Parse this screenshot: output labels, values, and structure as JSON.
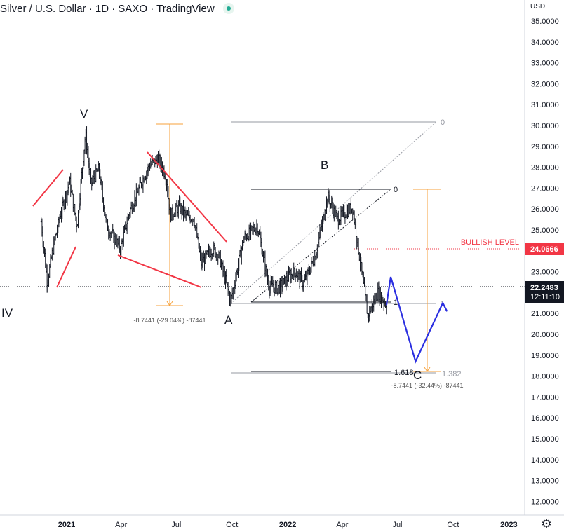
{
  "header": {
    "title": "Silver / U.S. Dollar · 1D · SAXO · TradingView"
  },
  "chart_data": {
    "type": "candlestick",
    "currency_label": "USD",
    "y_ticks": [
      "35.0000",
      "34.0000",
      "33.0000",
      "32.0000",
      "31.0000",
      "30.0000",
      "29.0000",
      "28.0000",
      "27.0000",
      "26.0000",
      "25.0000",
      "24.0000",
      "23.0000",
      "22.0000",
      "21.0000",
      "20.0000",
      "19.0000",
      "18.0000",
      "17.0000",
      "16.0000",
      "15.0000",
      "14.0000",
      "13.0000",
      "12.0000"
    ],
    "x_ticks": [
      "2021",
      "Apr",
      "Jul",
      "Oct",
      "2022",
      "Apr",
      "Jul",
      "Oct",
      "2023"
    ],
    "last_price": "22.2483",
    "countdown": "12:11:10",
    "bullish_level": {
      "label": "BULLISH LEVEL",
      "value": "24.0666"
    },
    "wave_labels": [
      "IV",
      "V",
      "A",
      "B",
      "C"
    ],
    "fib_upper": {
      "level_0": "0",
      "level_1": "1"
    },
    "fib_lower": {
      "level_0": "0",
      "level_1": "1",
      "level_1618": "1.618",
      "level_1382": "1.382"
    },
    "measure_1": "-8.7441 (-29.04%) -87441",
    "measure_2": "-8.7441 (-32.44%) -87441",
    "price_path": [
      [
        "2020-11-20",
        25.4
      ],
      [
        "2020-11-30",
        22.5
      ],
      [
        "2020-12-10",
        24.2
      ],
      [
        "2020-12-22",
        25.8
      ],
      [
        "2021-01-06",
        27.3
      ],
      [
        "2021-01-18",
        25.2
      ],
      [
        "2021-02-01",
        29.6
      ],
      [
        "2021-02-10",
        27.2
      ],
      [
        "2021-02-23",
        27.9
      ],
      [
        "2021-03-08",
        25.2
      ],
      [
        "2021-03-31",
        24.1
      ],
      [
        "2021-04-15",
        25.9
      ],
      [
        "2021-05-05",
        27.3
      ],
      [
        "2021-05-18",
        28.1
      ],
      [
        "2021-06-01",
        28.4
      ],
      [
        "2021-06-14",
        27.6
      ],
      [
        "2021-06-21",
        25.7
      ],
      [
        "2021-07-06",
        26.1
      ],
      [
        "2021-07-19",
        25.6
      ],
      [
        "2021-07-30",
        25.6
      ],
      [
        "2021-08-11",
        23.4
      ],
      [
        "2021-08-30",
        24.1
      ],
      [
        "2021-09-10",
        23.7
      ],
      [
        "2021-09-29",
        21.6
      ],
      [
        "2021-10-20",
        24.6
      ],
      [
        "2021-11-12",
        25.2
      ],
      [
        "2021-12-01",
        22.3
      ],
      [
        "2021-12-16",
        22.2
      ],
      [
        "2022-01-05",
        22.8
      ],
      [
        "2022-01-14",
        23.0
      ],
      [
        "2022-01-27",
        22.4
      ],
      [
        "2022-02-16",
        23.8
      ],
      [
        "2022-03-08",
        26.6
      ],
      [
        "2022-03-24",
        25.5
      ],
      [
        "2022-04-18",
        26.1
      ],
      [
        "2022-05-13",
        20.9
      ],
      [
        "2022-05-30",
        22.0
      ],
      [
        "2022-06-13",
        21.4
      ]
    ],
    "projection_path": [
      [
        "2022-06-13",
        21.4
      ],
      [
        "2022-06-20",
        22.75
      ],
      [
        "2022-07-31",
        18.7
      ],
      [
        "2022-09-14",
        21.5
      ],
      [
        "2022-09-21",
        21.1
      ]
    ]
  }
}
